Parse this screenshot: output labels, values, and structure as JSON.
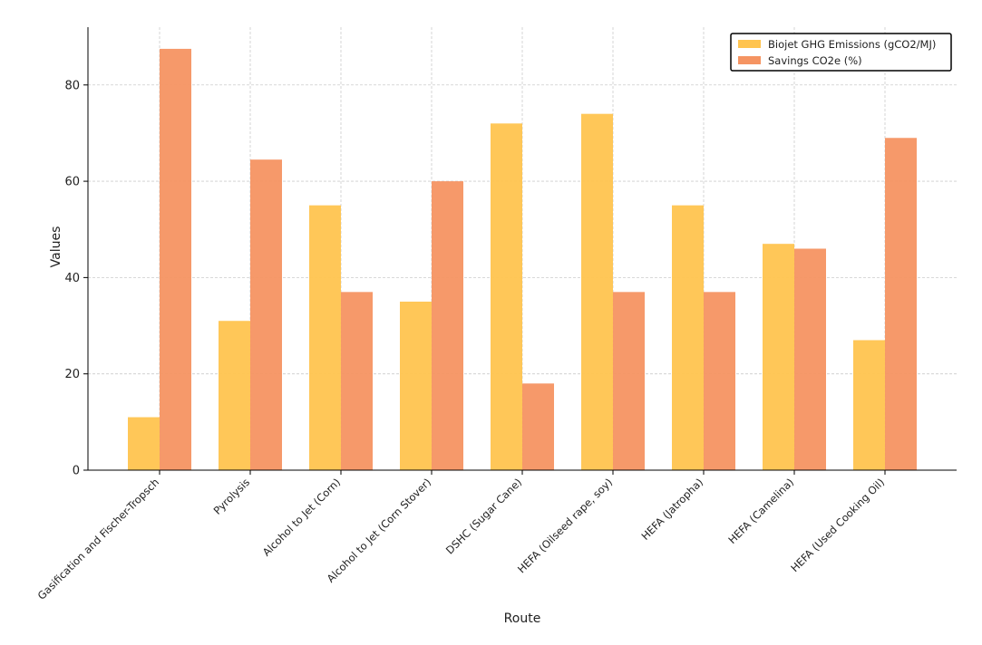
{
  "chart_data": {
    "type": "bar",
    "title": "",
    "xlabel": "Route",
    "ylabel": "Values",
    "ylim": [
      0,
      92
    ],
    "yticks": [
      0,
      20,
      40,
      60,
      80
    ],
    "grid": true,
    "legend_position": "top-right",
    "categories": [
      "Gasification and Fischer-Tropsch",
      "Pyrolysis",
      "Alcohol to Jet (Corn)",
      "Alcohol to Jet (Corn Stover)",
      "DSHC (Sugar Cane)",
      "HEFA (Oilseed rape, soy)",
      "HEFA (Jatropha)",
      "HEFA (Camelina)",
      "HEFA (Used Cooking Oil)"
    ],
    "series": [
      {
        "name": "Biojet GHG Emissions (gCO2/MJ)",
        "color": "#FFC44F",
        "values": [
          11,
          31,
          55,
          35,
          72,
          74,
          55,
          47,
          27
        ]
      },
      {
        "name": "Savings CO2e (%)",
        "color": "#F59462",
        "values": [
          87.5,
          64.5,
          37,
          60,
          18,
          37,
          37,
          46,
          69
        ]
      }
    ]
  }
}
